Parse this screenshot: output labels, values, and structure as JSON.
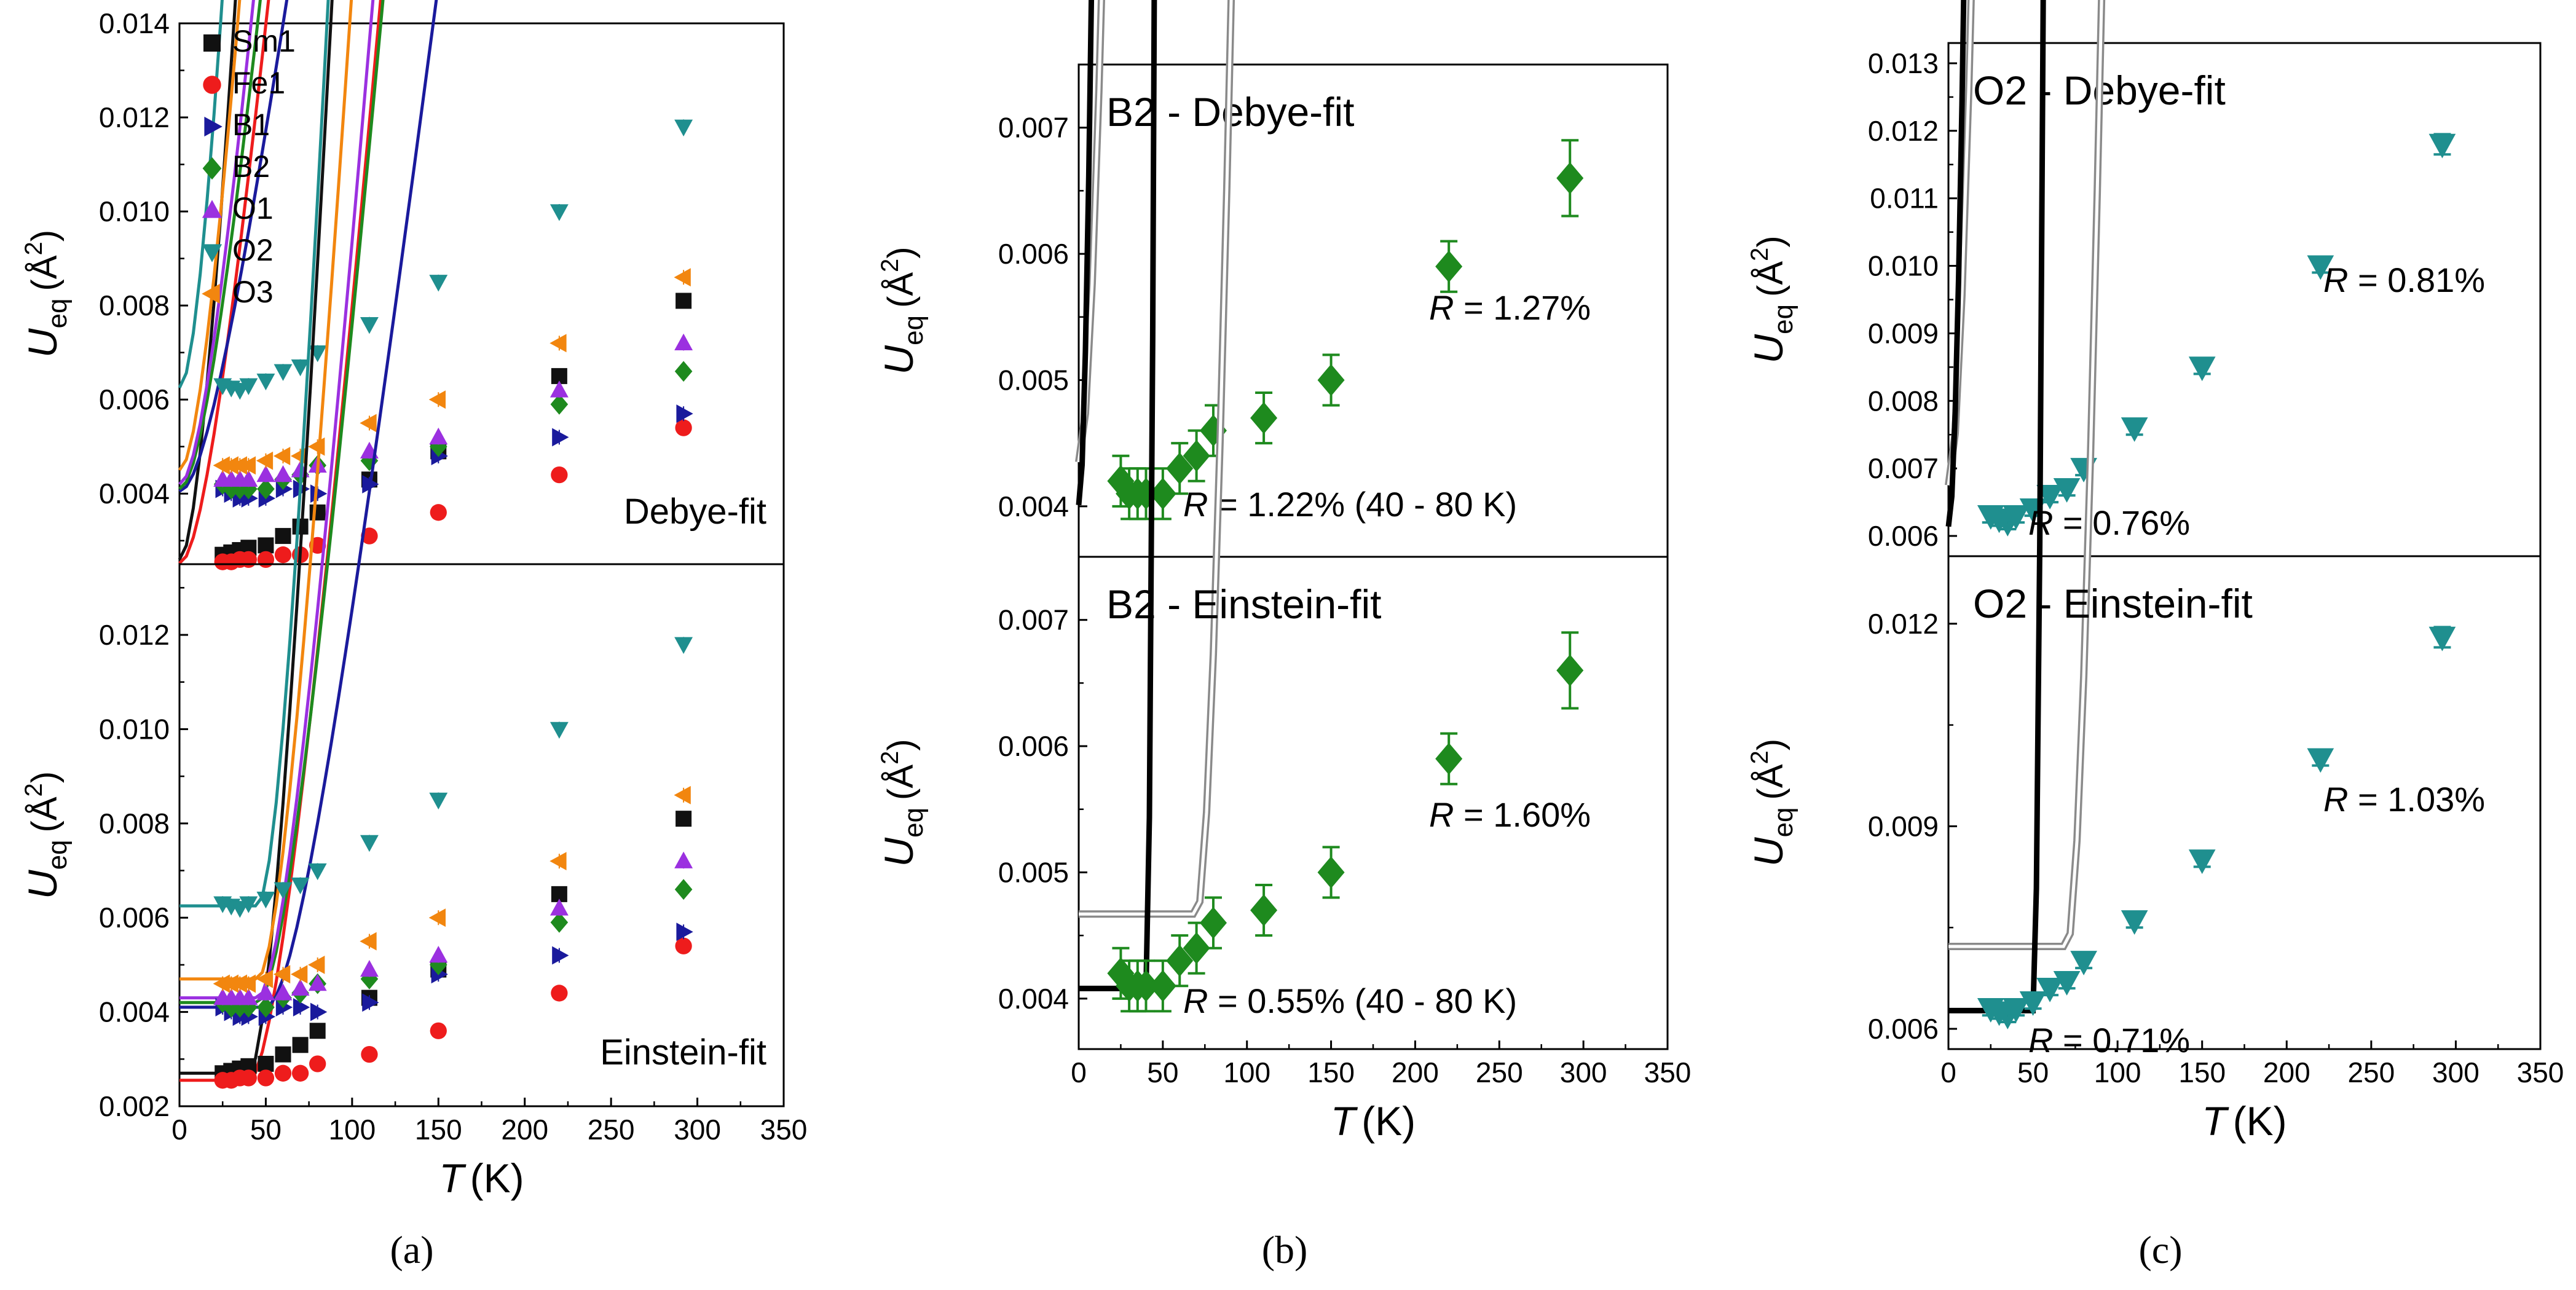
{
  "figure": {
    "subfigure_labels": [
      "(a)",
      "(b)",
      "(c)"
    ],
    "colors": {
      "Sm1": "#111111",
      "Fe1": "#ee1c1c",
      "B1": "#1a1a9c",
      "B2": "#1e8a1e",
      "O1": "#9b30e0",
      "O2": "#1f8f8f",
      "O3": "#f2860f",
      "fit_gray": "#8a8a8a",
      "fit_low": "#000000",
      "axis": "#000000"
    }
  },
  "chart_data": [
    {
      "id": "a",
      "type": "scatter",
      "subfigure": "(a)",
      "xlabel_main": "T",
      "xlabel_unit": "(K)",
      "xlim": [
        0,
        350
      ],
      "xticks": [
        0,
        50,
        100,
        150,
        200,
        250,
        300,
        350
      ],
      "legend_position": "top-left",
      "x": [
        25,
        30,
        35,
        40,
        50,
        60,
        70,
        80,
        110,
        150,
        220,
        292
      ],
      "panels": [
        {
          "label": "Debye-fit",
          "ylabel": "U",
          "ylabel_sub": "eq",
          "ylabel_unit": "(Å",
          "ylabel_sup": "2",
          "ylim": [
            0.0025,
            0.014
          ],
          "yticks": [
            "0.004",
            "0.006",
            "0.008",
            "0.010",
            "0.012",
            "0.014"
          ],
          "ytick_values": [
            0.004,
            0.006,
            0.008,
            0.01,
            0.012,
            0.014
          ],
          "series": [
            {
              "name": "Sm1",
              "marker": "square",
              "values": [
                0.0027,
                0.00275,
                0.0028,
                0.00285,
                0.0029,
                0.0031,
                0.0033,
                0.0036,
                0.0043,
                0.0049,
                0.0065,
                0.0081
              ]
            },
            {
              "name": "Fe1",
              "marker": "circle",
              "values": [
                0.00255,
                0.00255,
                0.0026,
                0.0026,
                0.0026,
                0.0027,
                0.0027,
                0.0029,
                0.0031,
                0.0036,
                0.0044,
                0.0054
              ]
            },
            {
              "name": "B1",
              "marker": "triangle-right",
              "values": [
                0.0041,
                0.004,
                0.0039,
                0.0039,
                0.0039,
                0.0041,
                0.0041,
                0.004,
                0.0042,
                0.0048,
                0.0052,
                0.0057
              ]
            },
            {
              "name": "B2",
              "marker": "diamond",
              "values": [
                0.0042,
                0.0041,
                0.0041,
                0.0041,
                0.0041,
                0.0043,
                0.0044,
                0.0046,
                0.0047,
                0.005,
                0.0059,
                0.0066
              ]
            },
            {
              "name": "O1",
              "marker": "triangle-up",
              "values": [
                0.0043,
                0.0043,
                0.0043,
                0.0043,
                0.0044,
                0.0044,
                0.0045,
                0.0046,
                0.0049,
                0.0052,
                0.0062,
                0.0072
              ]
            },
            {
              "name": "O2",
              "marker": "triangle-down",
              "values": [
                0.0063,
                0.00625,
                0.0062,
                0.0063,
                0.0064,
                0.0066,
                0.0067,
                0.007,
                0.0076,
                0.0085,
                0.01,
                0.0118
              ]
            },
            {
              "name": "O3",
              "marker": "triangle-left",
              "values": [
                0.0046,
                0.0046,
                0.0046,
                0.0046,
                0.0047,
                0.0048,
                0.0048,
                0.005,
                0.0055,
                0.006,
                0.0072,
                0.0086
              ]
            }
          ],
          "fits": [
            {
              "name": "Sm1",
              "u0": 0.0026,
              "b": 2.05e-05,
              "x0": 0
            },
            {
              "name": "Fe1",
              "u0": 0.00252,
              "b": 1.03e-05,
              "x0": 0
            },
            {
              "name": "B1",
              "u0": 0.00405,
              "b": 6.9e-06,
              "x0": 0
            },
            {
              "name": "B2",
              "u0": 0.0041,
              "b": 1.03e-05,
              "x0": 0
            },
            {
              "name": "O1",
              "u0": 0.0042,
              "b": 1.16e-05,
              "x0": 0
            },
            {
              "name": "O2",
              "u0": 0.00625,
              "b": 2.18e-05,
              "x0": 0
            },
            {
              "name": "O3",
              "u0": 0.0045,
              "b": 1.54e-05,
              "x0": 0
            }
          ]
        },
        {
          "label": "Einstein-fit",
          "ylabel": "U",
          "ylabel_sub": "eq",
          "ylabel_unit": "(Å",
          "ylabel_sup": "2",
          "ylim": [
            0.002,
            0.0135
          ],
          "yticks": [
            "0.002",
            "0.004",
            "0.006",
            "0.008",
            "0.010",
            "0.012"
          ],
          "ytick_values": [
            0.002,
            0.004,
            0.006,
            0.008,
            0.01,
            0.012
          ],
          "series": [
            {
              "name": "Sm1",
              "marker": "square",
              "values": [
                0.0027,
                0.00275,
                0.0028,
                0.00285,
                0.0029,
                0.0031,
                0.0033,
                0.0036,
                0.0043,
                0.0049,
                0.0065,
                0.0081
              ]
            },
            {
              "name": "Fe1",
              "marker": "circle",
              "values": [
                0.00255,
                0.00255,
                0.0026,
                0.0026,
                0.0026,
                0.0027,
                0.0027,
                0.0029,
                0.0031,
                0.0036,
                0.0044,
                0.0054
              ]
            },
            {
              "name": "B1",
              "marker": "triangle-right",
              "values": [
                0.0041,
                0.004,
                0.0039,
                0.0039,
                0.0039,
                0.0041,
                0.0041,
                0.004,
                0.0042,
                0.0048,
                0.0052,
                0.0057
              ]
            },
            {
              "name": "B2",
              "marker": "diamond",
              "values": [
                0.0042,
                0.0041,
                0.0041,
                0.0041,
                0.0041,
                0.0043,
                0.0044,
                0.0046,
                0.0047,
                0.005,
                0.0059,
                0.0066
              ]
            },
            {
              "name": "O1",
              "marker": "triangle-up",
              "values": [
                0.0043,
                0.0043,
                0.0043,
                0.0043,
                0.0044,
                0.0044,
                0.0045,
                0.0046,
                0.0049,
                0.0052,
                0.0062,
                0.0072
              ]
            },
            {
              "name": "O2",
              "marker": "triangle-down",
              "values": [
                0.0063,
                0.00625,
                0.0062,
                0.0063,
                0.0064,
                0.0066,
                0.0067,
                0.007,
                0.0076,
                0.0085,
                0.01,
                0.0118
              ]
            },
            {
              "name": "O3",
              "marker": "triangle-left",
              "values": [
                0.0046,
                0.0046,
                0.0046,
                0.0046,
                0.0047,
                0.0048,
                0.0048,
                0.005,
                0.0055,
                0.006,
                0.0072,
                0.0086
              ]
            }
          ],
          "fits": [
            {
              "name": "Sm1",
              "u0": 0.0027,
              "b": 2.15e-05,
              "x0": 40
            },
            {
              "name": "Fe1",
              "u0": 0.00255,
              "b": 1.14e-05,
              "x0": 40
            },
            {
              "name": "B1",
              "u0": 0.0041,
              "b": 7.6e-06,
              "x0": 50
            },
            {
              "name": "B2",
              "u0": 0.0042,
              "b": 1.13e-05,
              "x0": 45
            },
            {
              "name": "O1",
              "u0": 0.0043,
              "b": 1.26e-05,
              "x0": 45
            },
            {
              "name": "O2",
              "u0": 0.00625,
              "b": 2.3e-05,
              "x0": 45
            },
            {
              "name": "O3",
              "u0": 0.0047,
              "b": 1.65e-05,
              "x0": 45
            }
          ]
        }
      ]
    },
    {
      "id": "b",
      "type": "scatter",
      "subfigure": "(b)",
      "xlabel_main": "T",
      "xlabel_unit": "(K)",
      "xlim": [
        0,
        350
      ],
      "xticks": [
        0,
        50,
        100,
        150,
        200,
        250,
        300,
        350
      ],
      "x": [
        25,
        30,
        35,
        40,
        50,
        60,
        70,
        80,
        110,
        150,
        220,
        292
      ],
      "values": [
        0.0042,
        0.0041,
        0.0041,
        0.0041,
        0.0041,
        0.0043,
        0.0044,
        0.0046,
        0.0047,
        0.005,
        0.0059,
        0.0066
      ],
      "errors": [
        0.0002,
        0.0002,
        0.0002,
        0.0002,
        0.0002,
        0.0002,
        0.0002,
        0.0002,
        0.0002,
        0.0002,
        0.0002,
        0.0003
      ],
      "panels": [
        {
          "title": "B2 - Debye-fit",
          "ylabel": "U",
          "ylabel_sub": "eq",
          "ylabel_unit": "(Å",
          "ylabel_sup": "2",
          "ylim": [
            0.0036,
            0.0075
          ],
          "yticks": [
            "0.004",
            "0.005",
            "0.006",
            "0.007"
          ],
          "ytick_values": [
            0.004,
            0.005,
            0.006,
            0.007
          ],
          "fit_high": {
            "u0": 0.00435,
            "b": 2.65e-05,
            "x0": 0,
            "x_range": [
              0,
              325
            ],
            "r_label": "R",
            "r_text": " = 1.27%"
          },
          "fit_low": {
            "u0": 0.00401,
            "b": 8.35e-05,
            "x0": 0,
            "x_range": [
              0,
              88
            ],
            "r_label": "R",
            "r_text": " = 1.22% (40 - 80 K)"
          }
        },
        {
          "title": "B2 - Einstein-fit",
          "ylabel": "U",
          "ylabel_sub": "eq",
          "ylabel_unit": "(Å",
          "ylabel_sup": "2",
          "ylim": [
            0.0036,
            0.0075
          ],
          "yticks": [
            "0.004",
            "0.005",
            "0.006",
            "0.007"
          ],
          "ytick_values": [
            0.004,
            0.005,
            0.006,
            0.007
          ],
          "fit_high": {
            "u0": 0.00467,
            "b": 2.57e-05,
            "x0": 70,
            "x_range": [
              0,
              325
            ],
            "r_label": "R",
            "r_text": " = 1.60%"
          },
          "fit_low": {
            "u0": 0.00408,
            "b": 0.000356,
            "x0": 40,
            "x_range": [
              0,
              88
            ],
            "r_label": "R",
            "r_text": " = 0.55% (40 - 80 K)"
          }
        }
      ]
    },
    {
      "id": "c",
      "type": "scatter",
      "subfigure": "(c)",
      "xlabel_main": "T",
      "xlabel_unit": "(K)",
      "xlim": [
        0,
        350
      ],
      "xticks": [
        0,
        50,
        100,
        150,
        200,
        250,
        300,
        350
      ],
      "x": [
        25,
        30,
        35,
        40,
        50,
        60,
        70,
        80,
        110,
        150,
        220,
        292
      ],
      "values": [
        0.0063,
        0.00625,
        0.0062,
        0.0063,
        0.0064,
        0.0066,
        0.0067,
        0.007,
        0.0076,
        0.0085,
        0.01,
        0.0118
      ],
      "errors": [
        0.0001,
        0.0001,
        0.0001,
        0.0001,
        0.0001,
        0.0001,
        0.0001,
        0.0001,
        0.0001,
        0.0001,
        0.0001,
        0.00015
      ],
      "panels": [
        {
          "title": "O2 - Debye-fit",
          "ylabel": "U",
          "ylabel_sub": "eq",
          "ylabel_unit": "(Å",
          "ylabel_sup": "2",
          "ylim": [
            0.0057,
            0.0133
          ],
          "yticks": [
            "0.006",
            "0.007",
            "0.008",
            "0.009",
            "0.010",
            "0.011",
            "0.012",
            "0.013"
          ],
          "ytick_values": [
            0.006,
            0.007,
            0.008,
            0.009,
            0.01,
            0.011,
            0.012,
            0.013
          ],
          "fit_high": {
            "u0": 0.00675,
            "b": 5.28e-05,
            "x0": 0,
            "x_range": [
              0,
              325
            ],
            "r_label": "R",
            "r_text": " = 0.81%"
          },
          "fit_low": {
            "u0": 0.00614,
            "b": 0.000117,
            "x0": 0,
            "x_range": [
              0,
              90
            ],
            "r_label": "R",
            "r_text": " = 0.76%"
          }
        },
        {
          "title": "O2 - Einstein-fit",
          "ylabel": "U",
          "ylabel_sub": "eq",
          "ylabel_unit": "(Å",
          "ylabel_sup": "2",
          "ylim": [
            0.0057,
            0.013
          ],
          "yticks": [
            "0.006",
            "0.009",
            "0.012"
          ],
          "ytick_values": [
            0.006,
            0.009,
            0.012
          ],
          "fit_high": {
            "u0": 0.00722,
            "b": 5e-05,
            "x0": 70,
            "x_range": [
              0,
              325
            ],
            "r_label": "R",
            "r_text": " = 1.03%"
          },
          "fit_low": {
            "u0": 0.00627,
            "b": 0.000475,
            "x0": 50,
            "x_range": [
              0,
              90
            ],
            "r_label": "R",
            "r_text": " = 0.71%"
          }
        }
      ]
    }
  ]
}
